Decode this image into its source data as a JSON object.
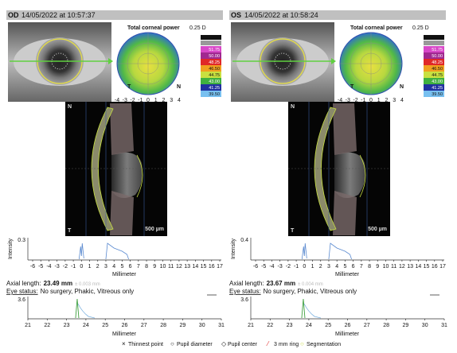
{
  "panels": [
    {
      "eye": "OD",
      "date": "14/05/2022 at 10:57:37",
      "map_title": "Total corneal power",
      "step": "0.25 D",
      "scale": [
        "51.75",
        "50.00",
        "48.25",
        "46.50",
        "44.75",
        "43.00",
        "41.25",
        "39.50"
      ],
      "map_ticks": [
        "-4",
        "-3",
        "-2",
        "-1",
        "0",
        "1",
        "2",
        "3",
        "4"
      ],
      "map_left": "T",
      "map_right": "N",
      "oct_top": "N",
      "oct_bottom": "T",
      "oct_scale": "500 µm",
      "intensity_label": "Intensity",
      "intensity_ytick": "0.3",
      "intensity_xticks": [
        "-6",
        "-5",
        "-4",
        "-3",
        "-2",
        "-1",
        "0",
        "1",
        "2",
        "3",
        "4",
        "5",
        "6",
        "7",
        "8",
        "9",
        "10",
        "11",
        "12",
        "13",
        "14",
        "15",
        "16",
        "17"
      ],
      "xlabel": "Millimeter",
      "axial_prefix": "Axial length:",
      "axial_value": "23.49 mm",
      "axial_sd": "± 0.003 mm",
      "status_label": "Eye status:",
      "status": "No surgery, Phakic, Vitreous only",
      "lower_ytick": "3.6",
      "lower_xticks": [
        "21",
        "22",
        "23",
        "24",
        "25",
        "26",
        "27",
        "28",
        "29",
        "30",
        "31"
      ],
      "lower_xlabel": "Millimeter"
    },
    {
      "eye": "OS",
      "date": "14/05/2022 at 10:58:24",
      "map_title": "Total corneal power",
      "step": "0.25 D",
      "scale": [
        "51.75",
        "50.00",
        "48.25",
        "46.50",
        "44.75",
        "43.00",
        "41.25",
        "39.50"
      ],
      "map_ticks": [
        "-4",
        "-3",
        "-2",
        "-1",
        "0",
        "1",
        "2",
        "3",
        "4"
      ],
      "map_left": "T",
      "map_right": "N",
      "oct_top": "N",
      "oct_bottom": "T",
      "oct_scale": "500 µm",
      "intensity_label": "Intensity",
      "intensity_ytick": "0.4",
      "intensity_xticks": [
        "-6",
        "-5",
        "-4",
        "-3",
        "-2",
        "-1",
        "0",
        "1",
        "2",
        "3",
        "4",
        "5",
        "6",
        "7",
        "8",
        "9",
        "10",
        "11",
        "12",
        "13",
        "14",
        "15",
        "16",
        "17"
      ],
      "xlabel": "Millimeter",
      "axial_prefix": "Axial length:",
      "axial_value": "23.67 mm",
      "axial_sd": "± 0.004 mm",
      "status_label": "Eye status:",
      "status": "No surgery, Phakic, Vitreous only",
      "lower_ytick": "3.6",
      "lower_xticks": [
        "21",
        "22",
        "23",
        "24",
        "25",
        "26",
        "27",
        "28",
        "29",
        "30",
        "31"
      ],
      "lower_xlabel": "Millimeter"
    }
  ],
  "legend": [
    "Thinnest point",
    "Pupil diameter",
    "Pupil center",
    "3 mm ring",
    "Segmentation"
  ]
}
